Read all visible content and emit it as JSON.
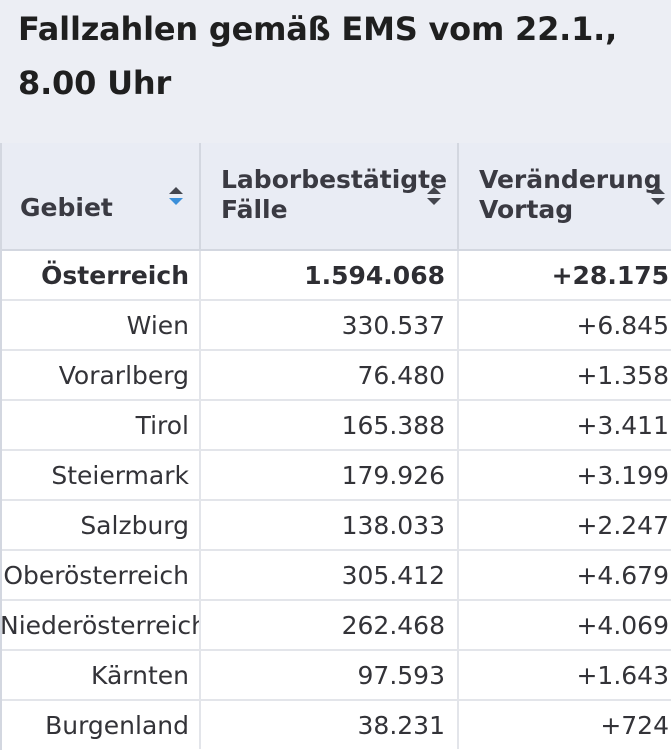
{
  "title": "Fallzahlen gemäß EMS vom 22.1., 8.00 Uhr",
  "columns": [
    {
      "label": "Gebiet",
      "sort_state": "ascending"
    },
    {
      "label": "Laborbestätigte Fälle",
      "sort_state": "unsorted"
    },
    {
      "label": "Veränderung Vortag",
      "sort_state": "unsorted"
    }
  ],
  "rows": [
    {
      "area": "Österreich",
      "cases": "1.594.068",
      "change": "+28.175",
      "total": true
    },
    {
      "area": "Wien",
      "cases": "330.537",
      "change": "+6.845"
    },
    {
      "area": "Vorarlberg",
      "cases": "76.480",
      "change": "+1.358"
    },
    {
      "area": "Tirol",
      "cases": "165.388",
      "change": "+3.411"
    },
    {
      "area": "Steiermark",
      "cases": "179.926",
      "change": "+3.199"
    },
    {
      "area": "Salzburg",
      "cases": "138.033",
      "change": "+2.247"
    },
    {
      "area": "Oberösterreich",
      "cases": "305.412",
      "change": "+4.679"
    },
    {
      "area": "Niederösterreich",
      "cases": "262.468",
      "change": "+4.069"
    },
    {
      "area": "Kärnten",
      "cases": "97.593",
      "change": "+1.643"
    },
    {
      "area": "Burgenland",
      "cases": "38.231",
      "change": "+724"
    }
  ],
  "colors": {
    "header_bg": "#e9ecf4",
    "sort_active": "#3b8fd9",
    "sort_inactive": "#44464e",
    "text": "#333338"
  }
}
